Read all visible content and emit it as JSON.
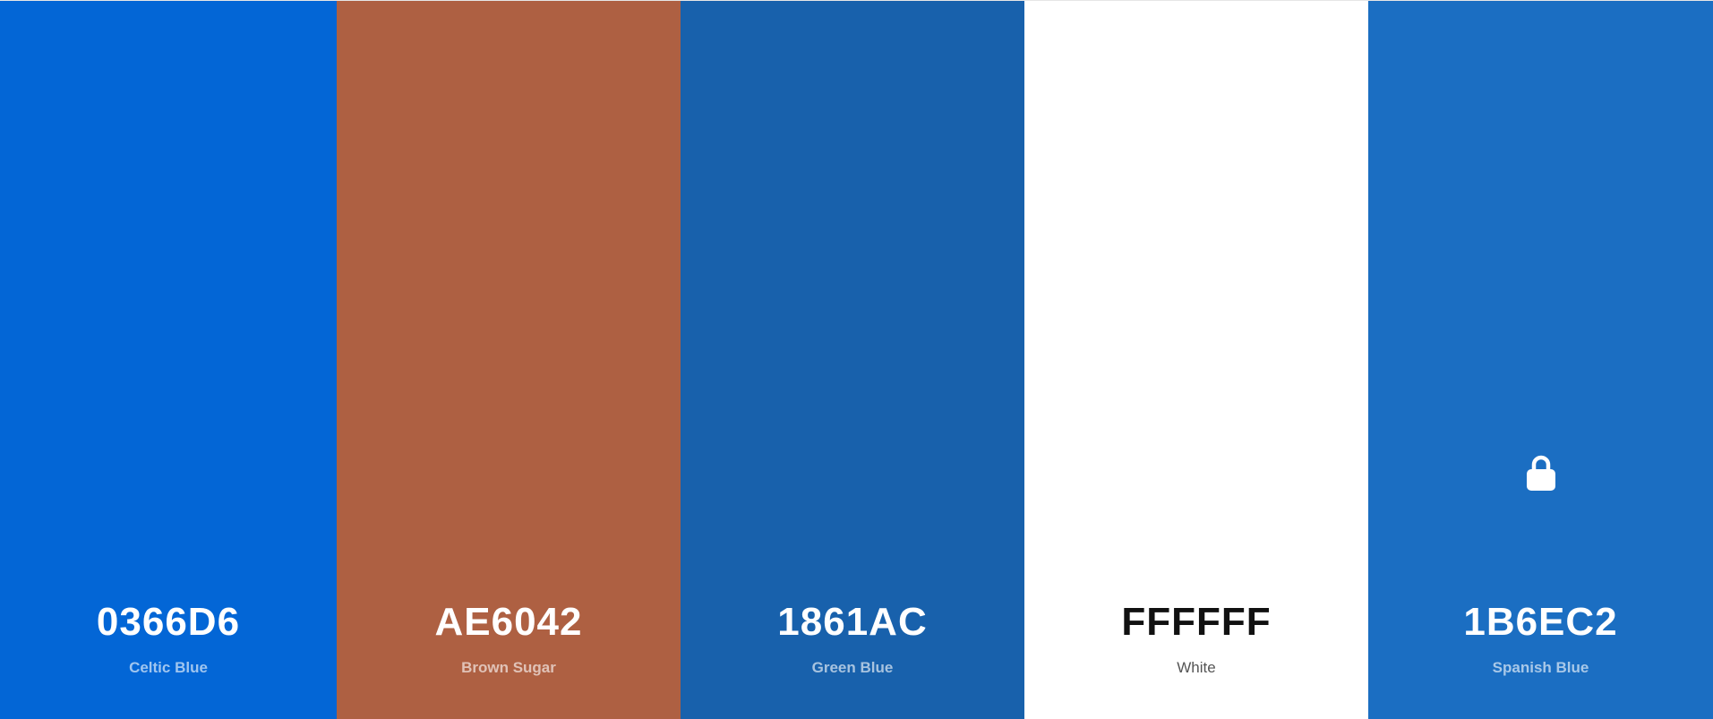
{
  "palette": {
    "colors": [
      {
        "hex": "0366D6",
        "name": "Celtic Blue",
        "color": "#0366D6",
        "text_tone": "dark"
      },
      {
        "hex": "AE6042",
        "name": "Brown Sugar",
        "color": "#AE6042",
        "text_tone": "dark"
      },
      {
        "hex": "1861AC",
        "name": "Green Blue",
        "color": "#1861AC",
        "text_tone": "dark"
      },
      {
        "hex": "FFFFFF",
        "name": "White",
        "color": "#FFFFFF",
        "text_tone": "light"
      },
      {
        "hex": "1B6EC2",
        "name": "Spanish Blue",
        "color": "#1B6EC2",
        "text_tone": "dark",
        "icon": "lock-icon"
      }
    ]
  }
}
